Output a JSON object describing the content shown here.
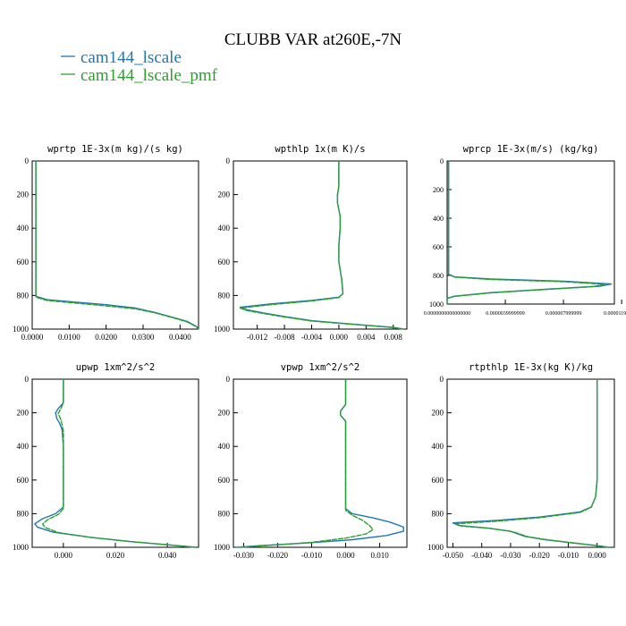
{
  "figure": {
    "title": "CLUBB VAR at260E,-7N"
  },
  "legend": [
    {
      "label": "cam144_lscale",
      "color": "#1f77b4",
      "style": "solid"
    },
    {
      "label": "cam144_lscale_pmf",
      "color": "#2ca02c",
      "style": "solid"
    }
  ],
  "chart_data": [
    {
      "type": "line",
      "title": "wprtp  1E-3x(m kg)/(s kg)",
      "xlim": [
        0.0,
        0.045
      ],
      "ylim": [
        1000,
        0
      ],
      "xticks": [
        "0.0000",
        "0.0100",
        "0.0200",
        "0.0300",
        "0.0400"
      ],
      "xtick_values": [
        0.0,
        0.01,
        0.02,
        0.03,
        0.04
      ],
      "yticks": [
        0,
        200,
        400,
        600,
        800,
        1000
      ],
      "series": [
        {
          "name": "cam144_lscale",
          "points": [
            [
              0.001,
              0
            ],
            [
              0.001,
              400
            ],
            [
              0.001,
              780
            ],
            [
              0.001,
              805
            ],
            [
              0.004,
              825
            ],
            [
              0.012,
              840
            ],
            [
              0.02,
              855
            ],
            [
              0.028,
              875
            ],
            [
              0.033,
              900
            ],
            [
              0.038,
              930
            ],
            [
              0.042,
              955
            ],
            [
              0.0445,
              985
            ],
            [
              0.045,
              1000
            ]
          ]
        },
        {
          "name": "cam144_lscale_pmf",
          "points": [
            [
              0.001,
              0
            ],
            [
              0.001,
              400
            ],
            [
              0.001,
              780
            ],
            [
              0.001,
              810
            ],
            [
              0.004,
              830
            ],
            [
              0.012,
              846
            ],
            [
              0.02,
              862
            ],
            [
              0.028,
              880
            ],
            [
              0.033,
              902
            ],
            [
              0.038,
              932
            ],
            [
              0.042,
              958
            ],
            [
              0.0445,
              988
            ],
            [
              0.045,
              1000
            ]
          ]
        }
      ]
    },
    {
      "type": "line",
      "title": "wpthlp  1x(m K)/s",
      "xlim": [
        -0.0155,
        0.01
      ],
      "ylim": [
        1000,
        0
      ],
      "xticks": [
        "-0.012",
        "-0.008",
        "-0.004",
        "0.000",
        "0.004",
        "0.008"
      ],
      "xtick_values": [
        -0.012,
        -0.008,
        -0.004,
        0.0,
        0.004,
        0.008
      ],
      "yticks": [
        0,
        200,
        400,
        600,
        800,
        1000
      ],
      "series": [
        {
          "name": "cam144_lscale",
          "points": [
            [
              0.0,
              0
            ],
            [
              0.0,
              150
            ],
            [
              -0.0002,
              200
            ],
            [
              -0.0002,
              250
            ],
            [
              0.0002,
              330
            ],
            [
              0.0002,
              400
            ],
            [
              0.0,
              500
            ],
            [
              0.0,
              600
            ],
            [
              0.0004,
              700
            ],
            [
              0.0006,
              790
            ],
            [
              0.0,
              810
            ],
            [
              -0.004,
              830
            ],
            [
              -0.01,
              850
            ],
            [
              -0.0145,
              870
            ],
            [
              -0.0135,
              885
            ],
            [
              -0.011,
              905
            ],
            [
              -0.008,
              925
            ],
            [
              -0.004,
              950
            ],
            [
              0.002,
              970
            ],
            [
              0.008,
              990
            ],
            [
              0.0095,
              1000
            ]
          ]
        },
        {
          "name": "cam144_lscale_pmf",
          "points": [
            [
              0.0,
              0
            ],
            [
              0.0,
              150
            ],
            [
              -0.0002,
              200
            ],
            [
              -0.0002,
              250
            ],
            [
              0.0002,
              330
            ],
            [
              0.0002,
              400
            ],
            [
              0.0,
              500
            ],
            [
              0.0,
              600
            ],
            [
              0.0004,
              700
            ],
            [
              0.0006,
              790
            ],
            [
              0.0,
              812
            ],
            [
              -0.004,
              833
            ],
            [
              -0.01,
              855
            ],
            [
              -0.0145,
              875
            ],
            [
              -0.0135,
              890
            ],
            [
              -0.011,
              908
            ],
            [
              -0.008,
              928
            ],
            [
              -0.004,
              952
            ],
            [
              0.002,
              972
            ],
            [
              0.008,
              991
            ],
            [
              0.0095,
              1000
            ]
          ]
        }
      ]
    },
    {
      "type": "line",
      "title": "wprcp  1E-3x(m/s) (kg/kg)",
      "xlim": [
        0.0,
        1.15e-05
      ],
      "ylim": [
        1000,
        0
      ],
      "xticks": [
        "0.0000000000000000",
        "0.0000039999999",
        "0.000007999999",
        "0.000011999999"
      ],
      "xtick_values": [
        0.0,
        4e-06,
        8e-06,
        1.2e-05
      ],
      "yticks": [
        0,
        200,
        400,
        600,
        800,
        1000
      ],
      "series": [
        {
          "name": "cam144_lscale",
          "points": [
            [
              1e-07,
              0
            ],
            [
              1e-07,
              600
            ],
            [
              1e-07,
              790
            ],
            [
              5e-07,
              810
            ],
            [
              3e-06,
              825
            ],
            [
              8e-06,
              840
            ],
            [
              1.13e-05,
              860
            ],
            [
              1.05e-05,
              875
            ],
            [
              7e-06,
              895
            ],
            [
              3e-06,
              920
            ],
            [
              5e-07,
              945
            ],
            [
              0.0,
              960
            ],
            [
              0.0,
              1000
            ]
          ]
        },
        {
          "name": "cam144_lscale_pmf",
          "points": [
            [
              1e-07,
              0
            ],
            [
              1e-07,
              600
            ],
            [
              1e-07,
              792
            ],
            [
              5e-07,
              812
            ],
            [
              3e-06,
              828
            ],
            [
              8e-06,
              844
            ],
            [
              1.08e-05,
              862
            ],
            [
              1e-05,
              878
            ],
            [
              6.8e-06,
              898
            ],
            [
              3e-06,
              922
            ],
            [
              5e-07,
              946
            ],
            [
              0.0,
              962
            ],
            [
              0.0,
              1000
            ]
          ]
        }
      ]
    },
    {
      "type": "line",
      "title": "upwp  1xm^2/s^2",
      "xlim": [
        -0.012,
        0.052
      ],
      "ylim": [
        1000,
        0
      ],
      "xticks": [
        "0.000",
        "0.020",
        "0.040"
      ],
      "xtick_values": [
        0.0,
        0.02,
        0.04
      ],
      "yticks": [
        0,
        200,
        400,
        600,
        800,
        1000
      ],
      "series": [
        {
          "name": "cam144_lscale",
          "points": [
            [
              0.0,
              0
            ],
            [
              0.0,
              140
            ],
            [
              -0.002,
              175
            ],
            [
              -0.003,
              200
            ],
            [
              -0.0025,
              235
            ],
            [
              -0.0015,
              260
            ],
            [
              -0.0005,
              300
            ],
            [
              0.0,
              400
            ],
            [
              0.0,
              600
            ],
            [
              0.0,
              760
            ],
            [
              -0.003,
              800
            ],
            [
              -0.008,
              830
            ],
            [
              -0.011,
              860
            ],
            [
              -0.01,
              880
            ],
            [
              -0.004,
              910
            ],
            [
              0.01,
              940
            ],
            [
              0.025,
              965
            ],
            [
              0.04,
              985
            ],
            [
              0.051,
              1000
            ]
          ]
        },
        {
          "name": "cam144_lscale_pmf",
          "points": [
            [
              0.0,
              0
            ],
            [
              0.0,
              140
            ],
            [
              -0.001,
              175
            ],
            [
              -0.002,
              205
            ],
            [
              -0.001,
              240
            ],
            [
              -0.0005,
              270
            ],
            [
              0.0,
              310
            ],
            [
              0.0,
              400
            ],
            [
              0.0,
              600
            ],
            [
              0.0,
              770
            ],
            [
              -0.002,
              805
            ],
            [
              -0.006,
              835
            ],
            [
              -0.008,
              862
            ],
            [
              -0.007,
              882
            ],
            [
              -0.002,
              912
            ],
            [
              0.011,
              942
            ],
            [
              0.026,
              966
            ],
            [
              0.041,
              986
            ],
            [
              0.051,
              1000
            ]
          ]
        }
      ]
    },
    {
      "type": "line",
      "title": "vpwp  1xm^2/s^2",
      "xlim": [
        -0.033,
        0.018
      ],
      "ylim": [
        1000,
        0
      ],
      "xticks": [
        "-0.030",
        "-0.020",
        "-0.010",
        "0.000",
        "0.010"
      ],
      "xtick_values": [
        -0.03,
        -0.02,
        -0.01,
        0.0,
        0.01
      ],
      "yticks": [
        0,
        200,
        400,
        600,
        800,
        1000
      ],
      "series": [
        {
          "name": "cam144_lscale",
          "points": [
            [
              0.0,
              0
            ],
            [
              0.0,
              150
            ],
            [
              -0.0015,
              190
            ],
            [
              -0.0015,
              215
            ],
            [
              0.0,
              250
            ],
            [
              0.0,
              300
            ],
            [
              0.0,
              500
            ],
            [
              0.0,
              700
            ],
            [
              0.0,
              770
            ],
            [
              0.002,
              800
            ],
            [
              0.008,
              825
            ],
            [
              0.013,
              850
            ],
            [
              0.017,
              880
            ],
            [
              0.017,
              905
            ],
            [
              0.012,
              930
            ],
            [
              0.002,
              955
            ],
            [
              -0.012,
              975
            ],
            [
              -0.025,
              990
            ],
            [
              -0.032,
              1000
            ]
          ]
        },
        {
          "name": "cam144_lscale_pmf",
          "points": [
            [
              0.0,
              0
            ],
            [
              0.0,
              150
            ],
            [
              -0.0015,
              190
            ],
            [
              -0.0015,
              215
            ],
            [
              0.0,
              250
            ],
            [
              0.0,
              300
            ],
            [
              0.0,
              500
            ],
            [
              0.0,
              700
            ],
            [
              0.0,
              780
            ],
            [
              0.002,
              810
            ],
            [
              0.005,
              840
            ],
            [
              0.007,
              870
            ],
            [
              0.008,
              895
            ],
            [
              0.006,
              920
            ],
            [
              0.0,
              945
            ],
            [
              -0.01,
              970
            ],
            [
              -0.022,
              988
            ],
            [
              -0.031,
              1000
            ]
          ]
        }
      ]
    },
    {
      "type": "line",
      "title": "rtpthlp  1E-3x(kg K)/kg",
      "xlim": [
        -0.052,
        0.006
      ],
      "ylim": [
        1000,
        0
      ],
      "xticks": [
        "-0.050",
        "-0.040",
        "-0.030",
        "-0.020",
        "-0.010",
        "0.000"
      ],
      "xtick_values": [
        -0.05,
        -0.04,
        -0.03,
        -0.02,
        -0.01,
        0.0
      ],
      "yticks": [
        0,
        200,
        400,
        600,
        800,
        1000
      ],
      "series": [
        {
          "name": "cam144_lscale",
          "points": [
            [
              0.0,
              0
            ],
            [
              0.0,
              400
            ],
            [
              0.0,
              600
            ],
            [
              -0.0005,
              700
            ],
            [
              -0.002,
              760
            ],
            [
              -0.006,
              790
            ],
            [
              -0.02,
              820
            ],
            [
              -0.035,
              840
            ],
            [
              -0.05,
              855
            ],
            [
              -0.048,
              870
            ],
            [
              -0.038,
              885
            ],
            [
              -0.03,
              905
            ],
            [
              -0.025,
              935
            ],
            [
              -0.018,
              955
            ],
            [
              -0.008,
              975
            ],
            [
              0.0,
              990
            ],
            [
              0.004,
              1000
            ]
          ]
        },
        {
          "name": "cam144_lscale_pmf",
          "points": [
            [
              0.0,
              0
            ],
            [
              0.0,
              400
            ],
            [
              0.0,
              600
            ],
            [
              -0.0005,
              700
            ],
            [
              -0.002,
              762
            ],
            [
              -0.006,
              793
            ],
            [
              -0.02,
              824
            ],
            [
              -0.035,
              845
            ],
            [
              -0.049,
              860
            ],
            [
              -0.047,
              874
            ],
            [
              -0.037,
              888
            ],
            [
              -0.029,
              908
            ],
            [
              -0.024,
              937
            ],
            [
              -0.017,
              956
            ],
            [
              -0.007,
              976
            ],
            [
              0.0,
              991
            ],
            [
              0.004,
              1000
            ]
          ]
        }
      ]
    }
  ]
}
